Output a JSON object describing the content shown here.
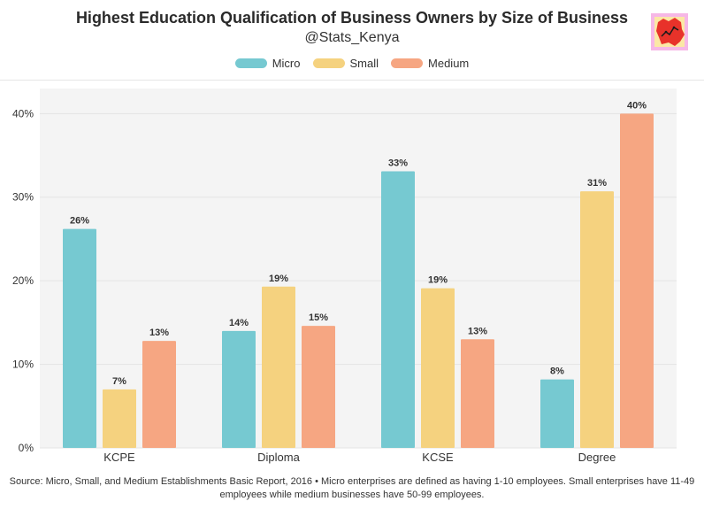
{
  "title": "Highest Education Qualification of Business Owners by Size of Business",
  "subtitle": "@Stats_Kenya",
  "footnote_line1": "Source: Micro, Small, and Medium Establishments Basic Report, 2016 • Micro enterprises are defined as having 1-10 employees. Small enterprises have 11-49",
  "footnote_line2": "employees while medium businesses have 50-99 employees.",
  "logo_icon": "kenya-map-icon",
  "chart_data": {
    "type": "bar",
    "categories": [
      "KCPE",
      "Diploma",
      "KCSE",
      "Degree"
    ],
    "series": [
      {
        "name": "Micro",
        "color": "#76c9d1",
        "values": [
          26.2,
          14.0,
          33.1,
          8.2
        ],
        "labels": [
          "26%",
          "14%",
          "33%",
          "8%"
        ]
      },
      {
        "name": "Small",
        "color": "#f5d27f",
        "values": [
          7.0,
          19.3,
          19.1,
          30.7
        ],
        "labels": [
          "7%",
          "19%",
          "19%",
          "31%"
        ]
      },
      {
        "name": "Medium",
        "color": "#f6a682",
        "values": [
          12.8,
          14.6,
          13.0,
          40.0
        ],
        "labels": [
          "13%",
          "15%",
          "13%",
          "40%"
        ]
      }
    ],
    "ylim": [
      0,
      43
    ],
    "yticks": [
      0,
      10,
      20,
      30,
      40
    ],
    "ytick_labels": [
      "0%",
      "10%",
      "20%",
      "30%",
      "40%"
    ],
    "grid": true,
    "legend_position": "top-center"
  }
}
